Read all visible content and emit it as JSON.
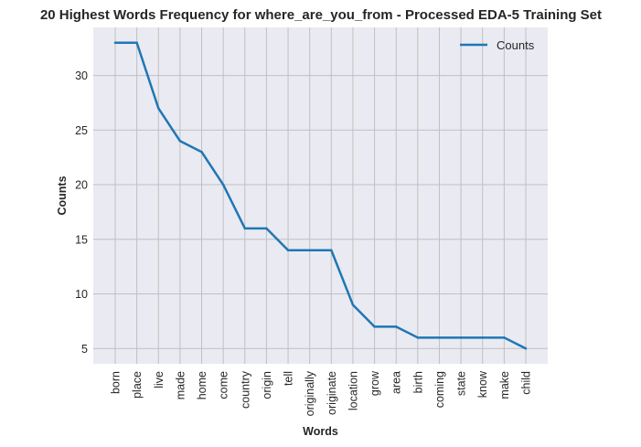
{
  "chart_data": {
    "type": "line",
    "title": "20 Highest Words Frequency for where_are_you_from - Processed EDA-5 Training Set",
    "xlabel": "Words",
    "ylabel": "Counts",
    "categories": [
      "born",
      "place",
      "live",
      "made",
      "home",
      "come",
      "country",
      "origin",
      "tell",
      "originally",
      "originate",
      "location",
      "grow",
      "area",
      "birth",
      "coming",
      "state",
      "know",
      "make",
      "child"
    ],
    "series": [
      {
        "name": "Counts",
        "values": [
          33,
          33,
          27,
          24,
          23,
          20,
          16,
          16,
          14,
          14,
          14,
          9,
          7,
          7,
          6,
          6,
          6,
          6,
          6,
          5
        ]
      }
    ],
    "ylim": [
      3.6,
      34.4
    ],
    "yticks": [
      5,
      10,
      15,
      20,
      25,
      30
    ],
    "grid": true,
    "legend_position": "top-right",
    "colors": {
      "line": "#1f77b4",
      "plot_background": "#eaeaf2",
      "grid": "#c0c0c0",
      "text": "#262626"
    }
  }
}
